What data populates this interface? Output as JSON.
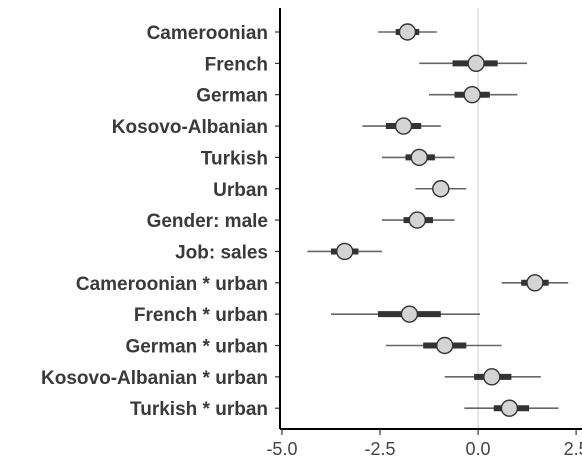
{
  "chart_data": {
    "type": "scatter",
    "subtype": "coefficient-interval-plot",
    "title": "",
    "xlabel": "",
    "ylabel": "",
    "xlim": [
      -5.05,
      2.65
    ],
    "xticks": [
      -5.0,
      -2.5,
      0.0,
      2.5
    ],
    "xtick_labels": [
      "-5.0",
      "-2.5",
      "0.0",
      "2.5"
    ],
    "reference_line_x": 0,
    "grid": false,
    "legend": "none",
    "colors": {
      "point_fill": "#d4d4d4",
      "point_stroke": "#333333",
      "inner_interval": "#333333",
      "outer_interval": "#666666",
      "reference_line": "#d3d3d3",
      "axis": "#000000"
    },
    "terms": [
      {
        "label": "Cameroonian",
        "estimate": -1.8,
        "inner": [
          -2.1,
          -1.5
        ],
        "outer": [
          -2.55,
          -1.05
        ]
      },
      {
        "label": "French",
        "estimate": -0.05,
        "inner": [
          -0.65,
          0.5
        ],
        "outer": [
          -1.5,
          1.25
        ]
      },
      {
        "label": "German",
        "estimate": -0.15,
        "inner": [
          -0.6,
          0.3
        ],
        "outer": [
          -1.25,
          1.0
        ]
      },
      {
        "label": "Kosovo-Albanian",
        "estimate": -1.9,
        "inner": [
          -2.35,
          -1.45
        ],
        "outer": [
          -2.95,
          -0.95
        ]
      },
      {
        "label": "Turkish",
        "estimate": -1.5,
        "inner": [
          -1.85,
          -1.1
        ],
        "outer": [
          -2.45,
          -0.6
        ]
      },
      {
        "label": "Urban",
        "estimate": -0.95,
        "inner": [
          -1.15,
          -0.75
        ],
        "outer": [
          -1.6,
          -0.3
        ]
      },
      {
        "label": "Gender: male",
        "estimate": -1.55,
        "inner": [
          -1.9,
          -1.15
        ],
        "outer": [
          -2.45,
          -0.6
        ]
      },
      {
        "label": "Job: sales",
        "estimate": -3.4,
        "inner": [
          -3.75,
          -3.05
        ],
        "outer": [
          -4.35,
          -2.45
        ]
      },
      {
        "label": "Cameroonian * urban",
        "estimate": 1.45,
        "inner": [
          1.1,
          1.8
        ],
        "outer": [
          0.6,
          2.3
        ]
      },
      {
        "label": "French * urban",
        "estimate": -1.75,
        "inner": [
          -2.55,
          -0.95
        ],
        "outer": [
          -3.75,
          0.05
        ]
      },
      {
        "label": "German * urban",
        "estimate": -0.85,
        "inner": [
          -1.4,
          -0.3
        ],
        "outer": [
          -2.35,
          0.6
        ]
      },
      {
        "label": "Kosovo-Albanian * urban",
        "estimate": 0.35,
        "inner": [
          -0.1,
          0.85
        ],
        "outer": [
          -0.85,
          1.6
        ]
      },
      {
        "label": "Turkish * urban",
        "estimate": 0.8,
        "inner": [
          0.4,
          1.3
        ],
        "outer": [
          -0.35,
          2.05
        ]
      }
    ]
  }
}
